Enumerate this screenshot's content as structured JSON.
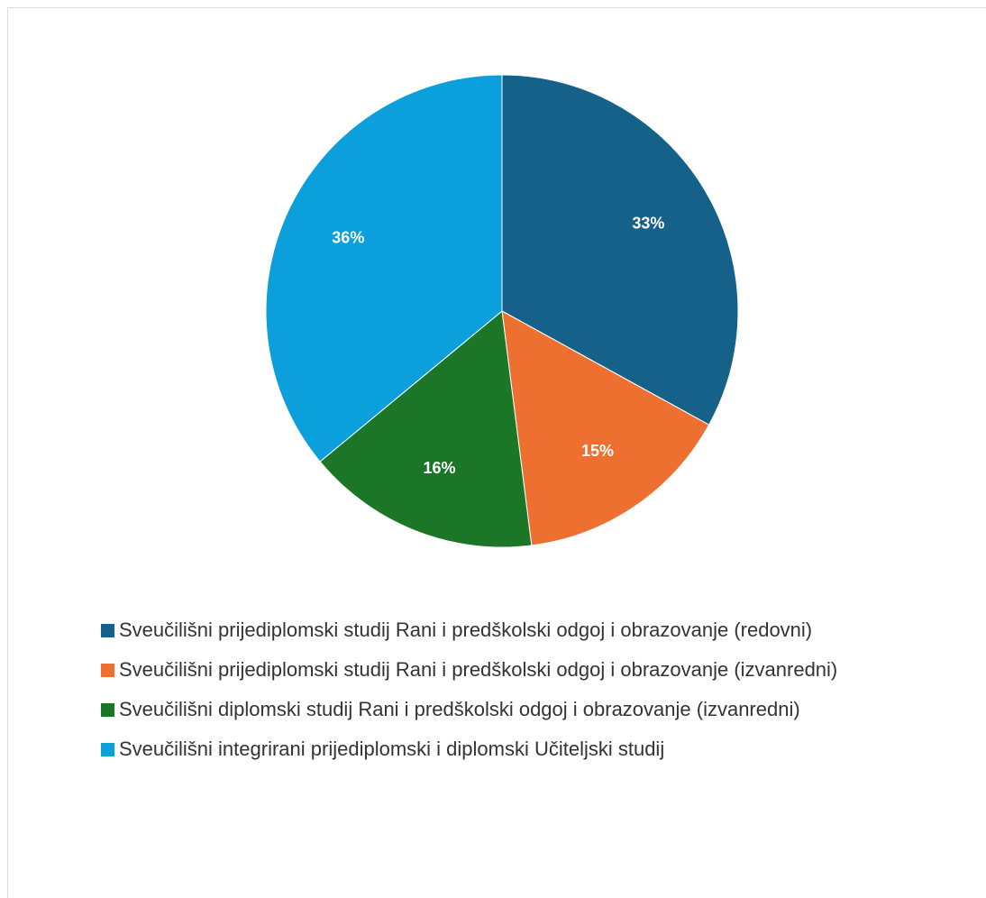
{
  "chart_data": {
    "type": "pie",
    "categories": [
      "Sveučilišni prijediplomski studij Rani i predškolski odgoj i obrazovanje (redovni)",
      "Sveučilišni prijediplomski studij Rani i predškolski odgoj i obrazovanje (izvanredni)",
      "Sveučilišni diplomski studij Rani i predškolski odgoj i obrazovanje (izvanredni)",
      "Sveučilišni integrirani prijediplomski i diplomski Učiteljski studij"
    ],
    "values": [
      33,
      15,
      16,
      36
    ],
    "value_labels": [
      "33%",
      "15%",
      "16%",
      "36%"
    ],
    "colors": [
      "#15618a",
      "#ee7031",
      "#1c7628",
      "#0b9fdc"
    ],
    "legend": "bottom"
  }
}
